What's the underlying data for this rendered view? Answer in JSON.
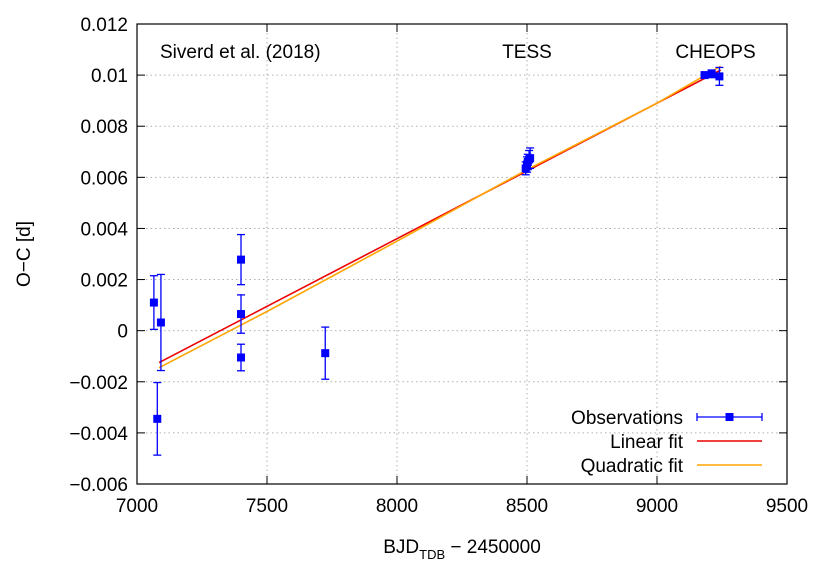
{
  "chart_data": {
    "type": "scatter",
    "xlabel": "BJD",
    "xlabel_sub": "TDB",
    "xlabel_suffix": " − 2450000",
    "ylabel": "O−C [d]",
    "xlim": [
      7000,
      9500
    ],
    "ylim": [
      -0.006,
      0.012
    ],
    "xticks": [
      7000,
      7500,
      8000,
      8500,
      9000,
      9500
    ],
    "yticks": [
      -0.006,
      -0.004,
      -0.002,
      0,
      0.002,
      0.004,
      0.006,
      0.008,
      0.01,
      0.012
    ],
    "xtick_labels": [
      "7000",
      "7500",
      "8000",
      "8500",
      "9000",
      "9500"
    ],
    "ytick_labels": [
      "−0.006",
      "−0.004",
      "−0.002",
      "0",
      "0.002",
      "0.004",
      "0.006",
      "0.008",
      "0.01",
      "0.012"
    ],
    "grid": true,
    "legend_position": "bottom-right",
    "annotations": [
      "Siverd et al. (2018)",
      "TESS",
      "CHEOPS"
    ],
    "series": [
      {
        "name": "Observations",
        "kind": "points-with-errorbars",
        "color": "#0000ff",
        "points": [
          {
            "x": 7065,
            "y": 0.0011,
            "err": 0.00105
          },
          {
            "x": 7078,
            "y": -0.00345,
            "err": 0.00142
          },
          {
            "x": 7092,
            "y": 0.00032,
            "err": 0.00188
          },
          {
            "x": 7400,
            "y": 0.00278,
            "err": 0.00098
          },
          {
            "x": 7400,
            "y": 0.00065,
            "err": 0.00075
          },
          {
            "x": 7400,
            "y": -0.00105,
            "err": 0.00052
          },
          {
            "x": 7724,
            "y": -0.00088,
            "err": 0.00102
          },
          {
            "x": 8495,
            "y": 0.00635,
            "err": 0.00025
          },
          {
            "x": 8500,
            "y": 0.0065,
            "err": 0.0003
          },
          {
            "x": 8503,
            "y": 0.0066,
            "err": 0.0003
          },
          {
            "x": 8508,
            "y": 0.0067,
            "err": 0.00035
          },
          {
            "x": 8512,
            "y": 0.00675,
            "err": 0.0004
          },
          {
            "x": 9183,
            "y": 0.01,
            "err": 0.00012
          },
          {
            "x": 9210,
            "y": 0.01005,
            "err": 0.00015
          },
          {
            "x": 9240,
            "y": 0.00995,
            "err": 0.00035
          }
        ]
      },
      {
        "name": "Linear fit",
        "kind": "line",
        "color": "#ee0000",
        "x": [
          7085,
          9245
        ],
        "y": [
          -0.00125,
          0.0102
        ]
      },
      {
        "name": "Quadratic fit",
        "kind": "line",
        "color": "#ffa500",
        "x": [
          7085,
          7500,
          8000,
          8500,
          9000,
          9245
        ],
        "y": [
          -0.00145,
          0.00075,
          0.0035,
          0.0063,
          0.0089,
          0.01035
        ]
      }
    ]
  }
}
